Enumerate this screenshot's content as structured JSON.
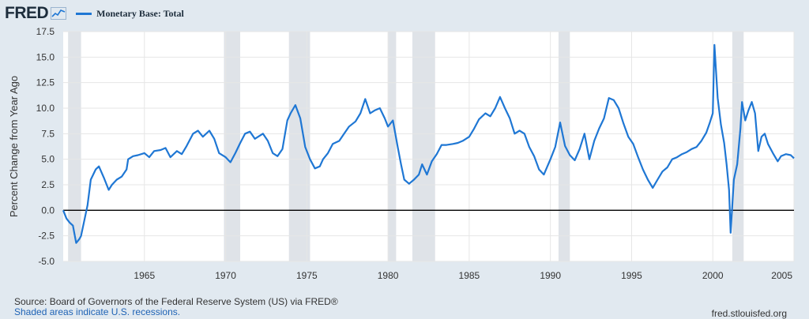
{
  "header": {
    "logo": "FRED",
    "legend_label": "Monetary Base: Total"
  },
  "footer": {
    "source": "Source: Board of Governors of the Federal Reserve System (US) via FRED®",
    "shaded_note": "Shaded areas indicate U.S. recessions.",
    "site": "fred.stlouisfed.org"
  },
  "colors": {
    "series": "#1f77d4",
    "background": "#e1e9f0",
    "plot_background": "#ffffff",
    "recession": "#dfe3e8",
    "zero_line": "#000000"
  },
  "chart_data": {
    "type": "line",
    "title": "",
    "ylabel": "Percent Change from Year Ago",
    "xlabel": "",
    "xlim": [
      1960.0,
      2005.0
    ],
    "ylim": [
      -5.0,
      17.5
    ],
    "y_ticks": [
      -5.0,
      -2.5,
      0.0,
      2.5,
      5.0,
      7.5,
      10.0,
      12.5,
      15.0,
      17.5
    ],
    "y_tick_labels": [
      "-5.0",
      "-2.5",
      "0.0",
      "2.5",
      "5.0",
      "7.5",
      "10.0",
      "12.5",
      "15.0",
      "17.5"
    ],
    "x_ticks": [
      1965,
      1970,
      1975,
      1980,
      1985,
      1990,
      1995,
      2000,
      2005
    ],
    "x_tick_labels": [
      "1965",
      "1970",
      "1975",
      "1980",
      "1985",
      "1990",
      "1995",
      "2000",
      "2005"
    ],
    "grid": true,
    "legend": "top-left",
    "recessions": [
      [
        1960.3,
        1961.1
      ],
      [
        1969.9,
        1970.9
      ],
      [
        1973.9,
        1975.2
      ],
      [
        1980.0,
        1980.5
      ],
      [
        1981.5,
        1982.9
      ],
      [
        1990.5,
        1991.2
      ],
      [
        2001.2,
        2001.9
      ]
    ],
    "series": [
      {
        "name": "Monetary Base: Total",
        "x": [
          1960.0,
          1960.2,
          1960.4,
          1960.6,
          1960.8,
          1961.0,
          1961.1,
          1961.3,
          1961.5,
          1961.7,
          1962.0,
          1962.2,
          1962.5,
          1962.8,
          1963.0,
          1963.3,
          1963.6,
          1963.9,
          1964.0,
          1964.3,
          1964.6,
          1965.0,
          1965.3,
          1965.6,
          1966.0,
          1966.3,
          1966.6,
          1967.0,
          1967.3,
          1967.6,
          1968.0,
          1968.3,
          1968.6,
          1969.0,
          1969.3,
          1969.6,
          1970.0,
          1970.3,
          1970.6,
          1970.9,
          1971.2,
          1971.5,
          1971.8,
          1972.0,
          1972.3,
          1972.6,
          1972.9,
          1973.2,
          1973.5,
          1973.8,
          1974.0,
          1974.3,
          1974.6,
          1974.9,
          1975.2,
          1975.5,
          1975.8,
          1976.0,
          1976.3,
          1976.6,
          1977.0,
          1977.3,
          1977.6,
          1978.0,
          1978.3,
          1978.6,
          1978.9,
          1979.2,
          1979.5,
          1979.8,
          1980.0,
          1980.3,
          1980.6,
          1980.8,
          1981.0,
          1981.3,
          1981.6,
          1981.9,
          1982.1,
          1982.4,
          1982.7,
          1983.0,
          1983.3,
          1983.6,
          1984.0,
          1984.3,
          1984.6,
          1985.0,
          1985.3,
          1985.6,
          1986.0,
          1986.3,
          1986.6,
          1986.9,
          1987.2,
          1987.5,
          1987.8,
          1988.1,
          1988.4,
          1988.7,
          1989.0,
          1989.3,
          1989.6,
          1990.0,
          1990.3,
          1990.6,
          1990.9,
          1991.2,
          1991.5,
          1991.8,
          1992.1,
          1992.4,
          1992.7,
          1993.0,
          1993.3,
          1993.6,
          1993.9,
          1994.2,
          1994.5,
          1994.8,
          1995.1,
          1995.4,
          1995.7,
          1996.0,
          1996.3,
          1996.6,
          1996.9,
          1997.2,
          1997.5,
          1997.8,
          1998.1,
          1998.4,
          1998.7,
          1999.0,
          1999.3,
          1999.6,
          1999.8,
          2000.0,
          2000.1,
          2000.3,
          2000.5,
          2000.7,
          2000.85,
          2001.0,
          2001.1,
          2001.3,
          2001.5,
          2001.7,
          2001.8,
          2002.0,
          2002.2,
          2002.4,
          2002.6,
          2002.8,
          2003.0,
          2003.2,
          2003.4,
          2003.7,
          2004.0,
          2004.2,
          2004.5,
          2004.8,
          2005.0
        ],
        "values": [
          0.0,
          -0.8,
          -1.2,
          -1.5,
          -3.2,
          -2.8,
          -2.5,
          -1.0,
          0.5,
          3.0,
          4.0,
          4.3,
          3.2,
          2.0,
          2.5,
          3.0,
          3.3,
          4.0,
          5.0,
          5.3,
          5.4,
          5.6,
          5.2,
          5.8,
          5.9,
          6.1,
          5.2,
          5.8,
          5.5,
          6.3,
          7.5,
          7.8,
          7.2,
          7.8,
          7.0,
          5.6,
          5.2,
          4.7,
          5.6,
          6.6,
          7.5,
          7.7,
          7.0,
          7.2,
          7.5,
          6.8,
          5.6,
          5.3,
          6.0,
          8.8,
          9.5,
          10.3,
          9.0,
          6.2,
          5.0,
          4.1,
          4.3,
          5.0,
          5.6,
          6.5,
          6.8,
          7.5,
          8.2,
          8.7,
          9.5,
          10.9,
          9.5,
          9.8,
          10.0,
          9.0,
          8.2,
          8.8,
          6.2,
          4.5,
          3.0,
          2.6,
          3.0,
          3.5,
          4.5,
          3.5,
          4.8,
          5.5,
          6.4,
          6.4,
          6.5,
          6.6,
          6.8,
          7.2,
          8.0,
          8.9,
          9.5,
          9.2,
          10.0,
          11.1,
          10.0,
          9.0,
          7.5,
          7.8,
          7.5,
          6.2,
          5.3,
          4.0,
          3.5,
          5.0,
          6.2,
          8.6,
          6.3,
          5.4,
          4.9,
          6.0,
          7.5,
          5.0,
          6.8,
          8.0,
          9.0,
          11.0,
          10.8,
          10.0,
          8.5,
          7.2,
          6.5,
          5.2,
          4.0,
          3.0,
          2.2,
          3.0,
          3.8,
          4.2,
          5.0,
          5.2,
          5.5,
          5.7,
          6.0,
          6.2,
          6.8,
          7.6,
          8.5,
          9.5,
          16.2,
          11.0,
          8.4,
          6.6,
          4.5,
          2.0,
          -2.2,
          3.0,
          4.5,
          8.0,
          10.6,
          8.8,
          9.8,
          10.6,
          9.5,
          5.8,
          7.2,
          7.5,
          6.5,
          5.6,
          4.8,
          5.3,
          5.5,
          5.4,
          5.1
        ]
      }
    ]
  }
}
